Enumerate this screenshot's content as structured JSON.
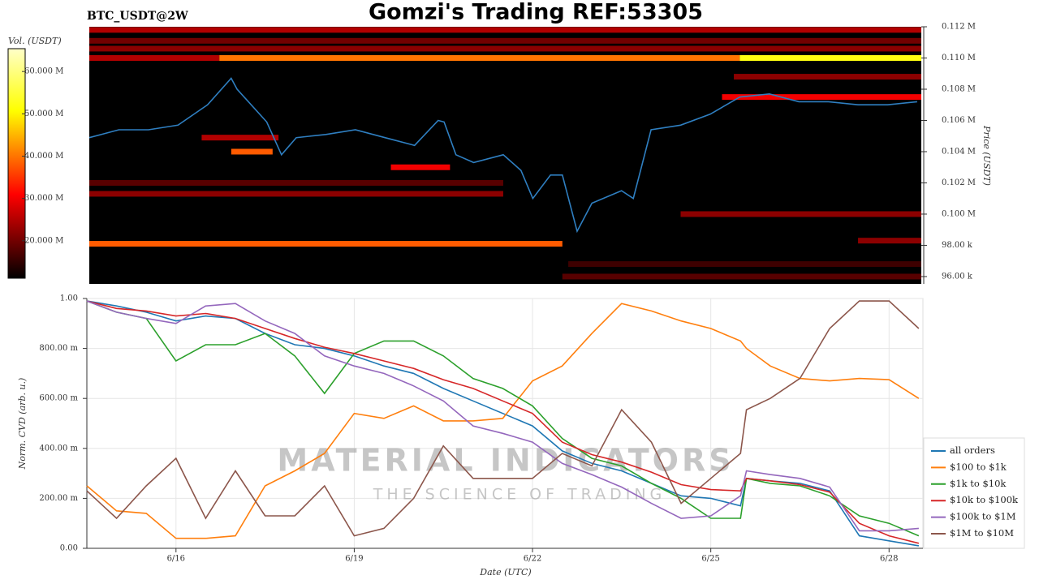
{
  "watermark": {
    "main": "MATERIAL INDICATORS",
    "sub": "THE SCIENCE OF TRADING"
  },
  "chart_data": [
    {
      "type": "heatmap",
      "title": "Gomzi's Trading REF:53305",
      "subtitle": "BTC_USDT@2W",
      "y_label": "Price (USDT)",
      "xlim": [
        14.5,
        28.57
      ],
      "ylim": [
        95530,
        112000
      ],
      "yticks": [
        {
          "value": 112000,
          "label": "0.112 M"
        },
        {
          "value": 110000,
          "label": "0.110 M"
        },
        {
          "value": 108000,
          "label": "0.108 M"
        },
        {
          "value": 106000,
          "label": "0.106 M"
        },
        {
          "value": 104000,
          "label": "0.104 M"
        },
        {
          "value": 102000,
          "label": "0.102 M"
        },
        {
          "value": 100000,
          "label": "0.100 M"
        },
        {
          "value": 98000,
          "label": "98.00 k"
        },
        {
          "value": 96000,
          "label": "96.00 k"
        }
      ],
      "colorbar": {
        "label": "Vol. (USDT)",
        "clim": [
          11150000,
          65400000
        ],
        "ticks": [
          {
            "value": 60000000,
            "label": "60.000 M"
          },
          {
            "value": 50000000,
            "label": "50.000 M"
          },
          {
            "value": 40000000,
            "label": "40.000 M"
          },
          {
            "value": 30000000,
            "label": "30.000 M"
          },
          {
            "value": 20000000,
            "label": "20.000 M"
          }
        ]
      },
      "bands": [
        {
          "price": 111800,
          "start": 14.5,
          "end": 28.57,
          "volume": 25000000
        },
        {
          "price": 111100,
          "start": 14.5,
          "end": 28.57,
          "volume": 20000000
        },
        {
          "price": 110600,
          "start": 14.5,
          "end": 28.57,
          "volume": 22000000
        },
        {
          "price": 110000,
          "start": 14.5,
          "end": 16.7,
          "volume": 25000000
        },
        {
          "price": 110000,
          "start": 16.7,
          "end": 25.5,
          "volume": 40000000
        },
        {
          "price": 110000,
          "start": 25.5,
          "end": 28.57,
          "volume": 52000000
        },
        {
          "price": 108800,
          "start": 25.4,
          "end": 28.57,
          "volume": 22000000
        },
        {
          "price": 107500,
          "start": 25.2,
          "end": 28.57,
          "volume": 30000000
        },
        {
          "price": 104900,
          "start": 16.4,
          "end": 17.7,
          "volume": 25000000
        },
        {
          "price": 104000,
          "start": 16.9,
          "end": 17.6,
          "volume": 38000000
        },
        {
          "price": 103000,
          "start": 19.6,
          "end": 20.6,
          "volume": 30000000
        },
        {
          "price": 102000,
          "start": 14.5,
          "end": 21.5,
          "volume": 18000000
        },
        {
          "price": 101300,
          "start": 14.5,
          "end": 21.5,
          "volume": 22000000
        },
        {
          "price": 100000,
          "start": 24.5,
          "end": 28.57,
          "volume": 22000000
        },
        {
          "price": 98300,
          "start": 27.5,
          "end": 28.57,
          "volume": 22000000
        },
        {
          "price": 98100,
          "start": 14.5,
          "end": 22.5,
          "volume": 38000000
        },
        {
          "price": 96800,
          "start": 22.6,
          "end": 28.57,
          "volume": 16000000
        },
        {
          "price": 96000,
          "start": 22.5,
          "end": 28.57,
          "volume": 18000000
        }
      ],
      "price_line": {
        "color": "#2f7fc1",
        "x": [
          14.5,
          15,
          15.5,
          16,
          16.5,
          16.9,
          17,
          17.5,
          17.75,
          18,
          18.5,
          19,
          19.5,
          20,
          20.4,
          20.5,
          20.7,
          21,
          21.5,
          21.8,
          22,
          22.3,
          22.5,
          22.75,
          23,
          23.5,
          23.7,
          24,
          24.5,
          25,
          25.5,
          26,
          26.5,
          27,
          27.5,
          28,
          28.5
        ],
        "values": [
          104900,
          105400,
          105400,
          105700,
          107000,
          108700,
          108000,
          105900,
          103800,
          104900,
          105100,
          105400,
          104900,
          104400,
          106000,
          105900,
          103800,
          103300,
          103800,
          102800,
          101000,
          102500,
          102500,
          98900,
          100700,
          101500,
          101000,
          105400,
          105700,
          106400,
          107500,
          107700,
          107200,
          107200,
          107000,
          107000,
          107200
        ]
      }
    },
    {
      "type": "line",
      "x_label": "Date (UTC)",
      "y_label": "Norm. CVD (arb. u.)",
      "grid": true,
      "legend": "right",
      "xlim": [
        14.5,
        28.57
      ],
      "xticks": [
        {
          "value": 16,
          "label": "6/16"
        },
        {
          "value": 19,
          "label": "6/19"
        },
        {
          "value": 22,
          "label": "6/22"
        },
        {
          "value": 25,
          "label": "6/25"
        },
        {
          "value": 28,
          "label": "6/28"
        }
      ],
      "ylim": [
        0,
        1
      ],
      "yticks": [
        {
          "value": 0,
          "label": "0.00"
        },
        {
          "value": 0.2,
          "label": "200.00 m"
        },
        {
          "value": 0.4,
          "label": "400.00 m"
        },
        {
          "value": 0.6,
          "label": "600.00 m"
        },
        {
          "value": 0.8,
          "label": "800.00 m"
        },
        {
          "value": 1,
          "label": "1.00"
        }
      ],
      "x": [
        14.5,
        15,
        15.5,
        16,
        16.5,
        17,
        17.5,
        18,
        18.5,
        19,
        19.5,
        20,
        20.5,
        21,
        21.5,
        22,
        22.5,
        23,
        23.5,
        24,
        24.5,
        25,
        25.5,
        25.6,
        26,
        26.5,
        27,
        27.5,
        28,
        28.5
      ],
      "series": [
        {
          "name": "all orders",
          "color": "#1f77b4",
          "values": [
            0.99,
            0.97,
            0.945,
            0.91,
            0.93,
            0.92,
            0.86,
            0.815,
            0.8,
            0.77,
            0.73,
            0.7,
            0.64,
            0.59,
            0.54,
            0.49,
            0.39,
            0.34,
            0.31,
            0.26,
            0.21,
            0.2,
            0.17,
            0.28,
            0.27,
            0.26,
            0.23,
            0.05,
            0.03,
            0.01
          ]
        },
        {
          "name": "$100 to $1k",
          "color": "#ff7f0e",
          "values": [
            0.25,
            0.15,
            0.14,
            0.04,
            0.04,
            0.05,
            0.25,
            0.31,
            0.38,
            0.54,
            0.52,
            0.57,
            0.51,
            0.51,
            0.52,
            0.67,
            0.73,
            0.86,
            0.98,
            0.95,
            0.91,
            0.88,
            0.83,
            0.8,
            0.73,
            0.68,
            0.67,
            0.68,
            0.675,
            0.6
          ]
        },
        {
          "name": "$1k to $10k",
          "color": "#2ca02c",
          "values": [
            0.99,
            0.945,
            0.92,
            0.75,
            0.815,
            0.815,
            0.86,
            0.77,
            0.62,
            0.78,
            0.83,
            0.83,
            0.77,
            0.68,
            0.64,
            0.57,
            0.44,
            0.36,
            0.33,
            0.26,
            0.2,
            0.12,
            0.12,
            0.28,
            0.26,
            0.25,
            0.21,
            0.13,
            0.1,
            0.05
          ]
        },
        {
          "name": "$10k to $100k",
          "color": "#d62728",
          "values": [
            0.99,
            0.96,
            0.95,
            0.93,
            0.94,
            0.92,
            0.88,
            0.84,
            0.805,
            0.78,
            0.75,
            0.72,
            0.675,
            0.64,
            0.59,
            0.54,
            0.425,
            0.375,
            0.345,
            0.305,
            0.255,
            0.235,
            0.23,
            0.28,
            0.27,
            0.255,
            0.225,
            0.1,
            0.05,
            0.02
          ]
        },
        {
          "name": "$100k to $1M",
          "color": "#9467bd",
          "values": [
            0.99,
            0.945,
            0.92,
            0.9,
            0.97,
            0.98,
            0.91,
            0.86,
            0.77,
            0.73,
            0.7,
            0.65,
            0.59,
            0.49,
            0.46,
            0.425,
            0.34,
            0.295,
            0.245,
            0.18,
            0.12,
            0.13,
            0.21,
            0.31,
            0.295,
            0.28,
            0.245,
            0.07,
            0.07,
            0.08
          ]
        },
        {
          "name": "$1M to $10M",
          "color": "#8c564b",
          "values": [
            0.23,
            0.12,
            0.25,
            0.36,
            0.12,
            0.31,
            0.13,
            0.13,
            0.25,
            0.05,
            0.08,
            0.2,
            0.41,
            0.28,
            0.28,
            0.28,
            0.38,
            0.33,
            0.555,
            0.425,
            0.18,
            0.28,
            0.38,
            0.555,
            0.6,
            0.68,
            0.88,
            0.99,
            0.99,
            0.88
          ]
        }
      ]
    }
  ]
}
